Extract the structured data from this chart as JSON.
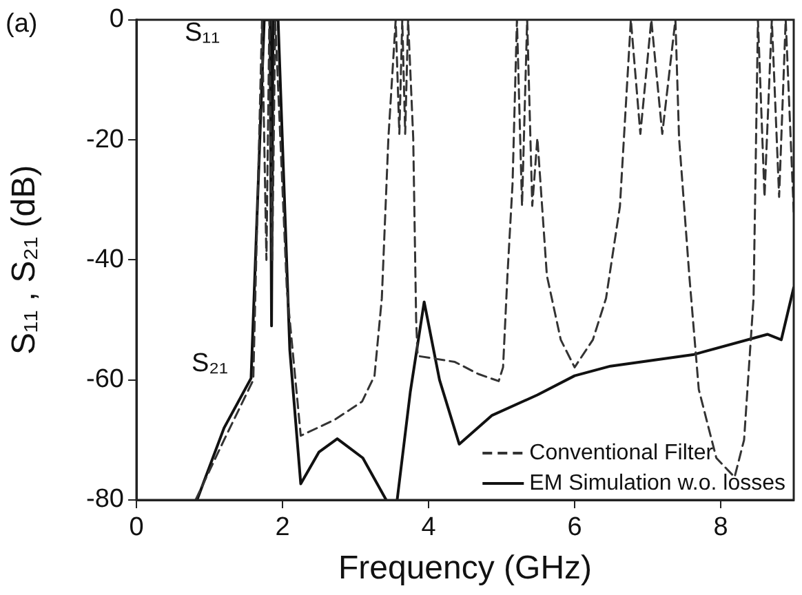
{
  "chart_data": {
    "type": "line",
    "xlabel": "Frequency (GHz)",
    "ylabel": "S₁₁ , S₂₁ (dB)",
    "xlim": [
      0,
      9
    ],
    "xticks": [
      0,
      2,
      4,
      6,
      8
    ],
    "ylim": [
      -80,
      0
    ],
    "yticks": [
      -80,
      -60,
      -40,
      -20,
      0
    ],
    "grid": false,
    "legend": "bottom right",
    "marker": "none",
    "annotations": [
      "(a)",
      "S₁₁",
      "S₂₁"
    ],
    "series": [
      {
        "name": "Conventional Filter",
        "color": "#333333",
        "line_style": "dashed",
        "x": [
          0.81,
          1.2,
          1.6,
          1.72,
          1.78,
          1.82,
          1.86,
          1.9,
          2.06,
          2.25,
          2.72,
          3.09,
          3.26,
          3.36,
          3.45,
          3.55,
          3.6,
          3.64,
          3.68,
          3.72,
          3.79,
          3.83,
          3.85,
          4.36,
          4.68,
          4.96,
          5.02,
          5.08,
          5.15,
          5.21,
          5.28,
          5.35,
          5.42,
          5.49,
          5.62,
          5.81,
          6.0,
          6.25,
          6.43,
          6.62,
          6.77,
          6.9,
          7.05,
          7.2,
          7.38,
          7.43,
          7.57,
          7.7,
          7.94,
          8.19,
          8.32,
          8.45,
          8.51,
          8.6,
          8.7,
          8.8,
          8.89,
          9.0
        ],
        "values": [
          -80,
          -70,
          -60,
          0,
          -40,
          0,
          -40,
          0,
          -45,
          -69.3,
          -66.6,
          -63.6,
          -59.3,
          -46.4,
          -19.7,
          0,
          -19,
          0,
          -19,
          0,
          -19.7,
          -50,
          -56,
          -57,
          -59,
          -60.2,
          -57.9,
          -42.6,
          -27.3,
          0,
          -31,
          0,
          -31,
          -19.7,
          -42.6,
          -53.3,
          -57.9,
          -53.3,
          -46.4,
          -31.1,
          0,
          -19,
          0,
          -19,
          0,
          -19.7,
          -42.6,
          -61.6,
          -73,
          -76.2,
          -70,
          -46.4,
          0,
          -29.5,
          0,
          -29.5,
          0,
          -32
        ]
      },
      {
        "name": "EM Simulation w.o. losses",
        "color": "#111111",
        "line_style": "solid",
        "x": [
          0.83,
          1.2,
          1.57,
          1.75,
          1.83,
          1.85,
          1.87,
          1.94,
          2.1,
          2.25,
          2.5,
          2.75,
          3.1,
          3.42,
          3.5,
          3.57,
          3.75,
          3.94,
          4.15,
          4.42,
          4.87,
          5.49,
          6.0,
          6.49,
          7.62,
          8.64,
          8.83,
          9.0
        ],
        "values": [
          -80,
          -68,
          -59.7,
          0,
          0,
          -51,
          0,
          0,
          -55,
          -77.3,
          -72,
          -69.8,
          -73,
          -80,
          null,
          -80,
          -62,
          -47,
          -60,
          -70.7,
          -65.9,
          -62.5,
          -59.3,
          -57.7,
          -55.8,
          -52.4,
          -53.3,
          -44.6
        ]
      }
    ]
  }
}
